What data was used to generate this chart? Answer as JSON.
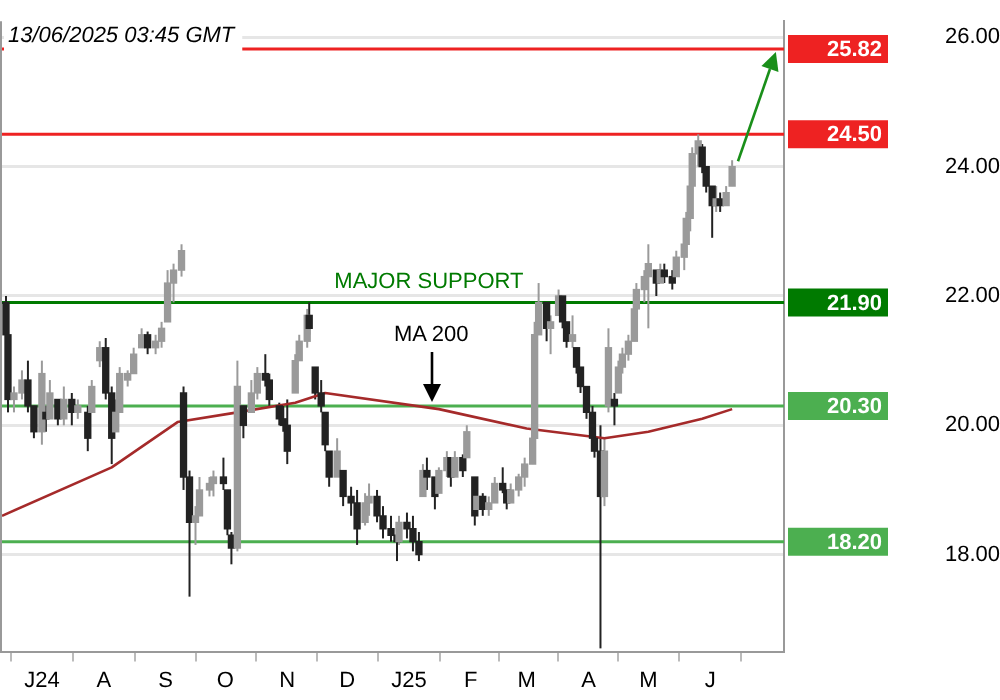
{
  "chart_data": {
    "type": "candlestick",
    "title": "13/06/2025 03:45 GMT",
    "marker": "none",
    "grid": "y",
    "x": [
      "2024-06-13",
      "2024-06-14",
      "2024-06-17",
      "2024-06-21",
      "2024-06-24",
      "2024-06-27",
      "2024-07-01",
      "2024-07-03",
      "2024-07-05",
      "2024-07-09",
      "2024-07-12",
      "2024-07-16",
      "2024-07-19",
      "2024-07-24",
      "2024-07-26",
      "2024-07-30",
      "2024-08-02",
      "2024-08-05",
      "2024-08-07",
      "2024-08-09",
      "2024-08-13",
      "2024-08-16",
      "2024-08-20",
      "2024-08-23",
      "2024-08-27",
      "2024-08-30",
      "2024-09-02",
      "2024-09-05",
      "2024-09-09",
      "2024-09-10",
      "2024-09-13",
      "2024-09-16",
      "2024-09-18",
      "2024-09-23",
      "2024-09-25",
      "2024-09-30",
      "2024-10-02",
      "2024-10-04",
      "2024-10-07",
      "2024-10-10",
      "2024-10-14",
      "2024-10-17",
      "2024-10-21",
      "2024-10-23",
      "2024-10-28",
      "2024-10-30",
      "2024-11-01",
      "2024-11-05",
      "2024-11-07",
      "2024-11-11",
      "2024-11-12",
      "2024-11-15",
      "2024-11-18",
      "2024-11-20",
      "2024-11-22",
      "2024-11-26",
      "2024-11-29",
      "2024-12-03",
      "2024-12-06",
      "2024-12-10",
      "2024-12-12",
      "2024-12-16",
      "2024-12-19",
      "2024-12-23",
      "2024-12-26",
      "2024-12-27",
      "2024-12-31",
      "2025-01-03",
      "2025-01-06",
      "2025-01-08",
      "2025-01-10",
      "2025-01-14",
      "2025-01-16",
      "2025-01-20",
      "2025-01-22",
      "2025-01-24",
      "2025-01-28",
      "2025-01-30",
      "2025-02-03",
      "2025-02-04",
      "2025-02-07",
      "2025-02-10",
      "2025-02-13",
      "2025-02-17",
      "2025-02-19",
      "2025-02-21",
      "2025-02-25",
      "2025-02-28",
      "2025-03-04",
      "2025-03-05",
      "2025-03-07",
      "2025-03-11",
      "2025-03-13",
      "2025-03-17",
      "2025-03-19",
      "2025-03-21",
      "2025-03-24",
      "2025-03-26",
      "2025-03-28",
      "2025-03-31",
      "2025-04-03",
      "2025-04-04",
      "2025-04-07",
      "2025-04-09",
      "2025-04-11",
      "2025-04-14",
      "2025-04-16",
      "2025-04-18",
      "2025-04-21",
      "2025-04-24",
      "2025-04-25",
      "2025-04-29",
      "2025-05-01",
      "2025-05-05",
      "2025-05-07",
      "2025-05-09",
      "2025-05-13",
      "2025-05-15",
      "2025-05-19",
      "2025-05-20",
      "2025-05-22",
      "2025-05-23",
      "2025-05-26",
      "2025-05-28",
      "2025-05-30",
      "2025-06-02",
      "2025-06-04",
      "2025-06-06",
      "2025-06-09",
      "2025-06-12"
    ],
    "ohlc": [
      [
        21.9,
        22.0,
        21.3,
        21.4
      ],
      [
        21.4,
        21.5,
        20.2,
        20.4
      ],
      [
        20.4,
        20.6,
        20.2,
        20.5
      ],
      [
        20.5,
        20.85,
        20.4,
        20.7
      ],
      [
        20.7,
        21.0,
        20.2,
        20.3
      ],
      [
        20.3,
        20.3,
        19.8,
        19.9
      ],
      [
        19.9,
        21.0,
        19.7,
        20.8
      ],
      [
        20.2,
        20.3,
        19.9,
        20.1
      ],
      [
        20.1,
        20.7,
        20.1,
        20.5
      ],
      [
        20.4,
        20.4,
        20.0,
        20.1
      ],
      [
        20.1,
        20.6,
        20.0,
        20.4
      ],
      [
        20.4,
        20.5,
        20.0,
        20.2
      ],
      [
        20.2,
        20.4,
        20.1,
        20.3
      ],
      [
        20.2,
        20.3,
        19.6,
        19.8
      ],
      [
        20.2,
        20.7,
        20.2,
        20.6
      ],
      [
        21.0,
        21.3,
        20.9,
        21.2
      ],
      [
        21.2,
        21.35,
        20.4,
        20.5
      ],
      [
        20.5,
        20.6,
        19.4,
        19.8
      ],
      [
        19.9,
        20.4,
        19.9,
        20.2
      ],
      [
        20.2,
        20.9,
        20.2,
        20.8
      ],
      [
        20.7,
        20.85,
        20.6,
        20.8
      ],
      [
        20.8,
        21.2,
        20.8,
        21.1
      ],
      [
        21.2,
        21.5,
        21.2,
        21.4
      ],
      [
        21.4,
        21.45,
        21.1,
        21.2
      ],
      [
        21.2,
        21.4,
        21.1,
        21.3
      ],
      [
        21.3,
        21.6,
        21.2,
        21.5
      ],
      [
        21.6,
        22.4,
        21.6,
        22.2
      ],
      [
        22.2,
        22.5,
        21.9,
        22.4
      ],
      [
        22.4,
        22.8,
        22.3,
        22.7
      ],
      [
        20.5,
        20.6,
        19.0,
        19.2
      ],
      [
        19.2,
        19.3,
        17.35,
        18.5
      ],
      [
        18.5,
        18.75,
        18.15,
        18.6
      ],
      [
        18.6,
        19.2,
        18.6,
        19.0
      ],
      [
        19.0,
        19.2,
        18.9,
        19.1
      ],
      [
        19.1,
        19.3,
        18.9,
        19.2
      ],
      [
        19.2,
        19.5,
        19.0,
        19.1
      ],
      [
        19.0,
        19.0,
        18.3,
        18.4
      ],
      [
        18.3,
        18.35,
        17.85,
        18.1
      ],
      [
        18.1,
        21.0,
        18.05,
        20.6
      ],
      [
        20.3,
        20.3,
        19.8,
        20.0
      ],
      [
        20.2,
        20.7,
        20.2,
        20.5
      ],
      [
        20.5,
        20.9,
        20.4,
        20.8
      ],
      [
        20.8,
        21.1,
        20.6,
        20.7
      ],
      [
        20.7,
        20.8,
        20.3,
        20.4
      ],
      [
        20.3,
        20.35,
        20.0,
        20.1
      ],
      [
        20.1,
        20.3,
        19.9,
        20.0
      ],
      [
        20.0,
        20.4,
        19.4,
        19.6
      ],
      [
        20.5,
        21.1,
        20.5,
        21.0
      ],
      [
        21.0,
        21.4,
        21.0,
        21.3
      ],
      [
        21.3,
        21.8,
        21.2,
        21.7
      ],
      [
        21.7,
        21.9,
        21.4,
        21.5
      ],
      [
        20.9,
        20.9,
        20.4,
        20.5
      ],
      [
        20.5,
        20.7,
        20.2,
        20.3
      ],
      [
        20.2,
        20.2,
        19.6,
        19.7
      ],
      [
        19.6,
        19.6,
        19.05,
        19.2
      ],
      [
        19.2,
        19.8,
        19.2,
        19.6
      ],
      [
        19.3,
        19.3,
        18.75,
        18.9
      ],
      [
        18.9,
        19.05,
        18.6,
        18.8
      ],
      [
        18.8,
        19.0,
        18.15,
        18.4
      ],
      [
        18.5,
        18.95,
        18.45,
        18.8
      ],
      [
        18.8,
        19.1,
        18.6,
        18.9
      ],
      [
        18.9,
        19.0,
        18.5,
        18.6
      ],
      [
        18.6,
        18.75,
        18.25,
        18.4
      ],
      [
        18.4,
        18.6,
        18.2,
        18.3
      ],
      [
        18.3,
        18.45,
        17.9,
        18.2
      ],
      [
        18.2,
        18.6,
        18.15,
        18.5
      ],
      [
        18.5,
        18.65,
        18.25,
        18.4
      ],
      [
        18.4,
        18.6,
        18.05,
        18.2
      ],
      [
        18.2,
        18.35,
        17.9,
        18.0
      ],
      [
        18.9,
        19.4,
        18.9,
        19.3
      ],
      [
        19.3,
        19.5,
        19.0,
        19.2
      ],
      [
        19.2,
        19.2,
        18.7,
        18.9
      ],
      [
        18.95,
        19.35,
        18.95,
        19.3
      ],
      [
        19.3,
        19.6,
        19.2,
        19.5
      ],
      [
        19.5,
        19.5,
        19.05,
        19.2
      ],
      [
        19.2,
        19.6,
        19.2,
        19.5
      ],
      [
        19.5,
        19.55,
        19.2,
        19.3
      ],
      [
        19.5,
        20.0,
        19.5,
        19.9
      ],
      [
        19.2,
        19.2,
        18.45,
        18.6
      ],
      [
        18.7,
        19.05,
        18.65,
        18.9
      ],
      [
        18.9,
        18.95,
        18.6,
        18.7
      ],
      [
        18.7,
        18.9,
        18.6,
        18.8
      ],
      [
        18.8,
        19.2,
        18.8,
        19.1
      ],
      [
        19.1,
        19.35,
        18.95,
        19.0
      ],
      [
        19.0,
        19.0,
        18.7,
        18.8
      ],
      [
        18.8,
        19.1,
        18.8,
        19.0
      ],
      [
        19.0,
        19.25,
        18.9,
        19.2
      ],
      [
        19.2,
        19.5,
        19.05,
        19.4
      ],
      [
        19.4,
        19.9,
        19.4,
        19.8
      ],
      [
        19.8,
        21.6,
        19.5,
        21.4
      ],
      [
        21.4,
        22.2,
        21.4,
        21.9
      ],
      [
        21.9,
        21.9,
        21.3,
        21.5
      ],
      [
        21.5,
        21.7,
        21.1,
        21.6
      ],
      [
        21.7,
        22.1,
        21.7,
        22.0
      ],
      [
        22.0,
        22.0,
        21.5,
        21.6
      ],
      [
        21.6,
        21.6,
        21.2,
        21.3
      ],
      [
        21.3,
        21.7,
        21.2,
        21.4
      ],
      [
        21.2,
        21.2,
        20.8,
        20.9
      ],
      [
        20.9,
        20.9,
        20.5,
        20.6
      ],
      [
        20.6,
        20.6,
        20.1,
        20.2
      ],
      [
        20.2,
        20.3,
        19.7,
        19.8
      ],
      [
        19.8,
        20.0,
        19.5,
        19.6
      ],
      [
        19.6,
        20.0,
        16.55,
        18.9
      ],
      [
        18.9,
        19.8,
        18.75,
        19.6
      ],
      [
        20.3,
        21.5,
        20.2,
        21.2
      ],
      [
        20.4,
        20.5,
        20.0,
        20.3
      ],
      [
        20.5,
        21.0,
        20.5,
        20.9
      ],
      [
        20.9,
        21.2,
        20.8,
        21.1
      ],
      [
        21.1,
        21.4,
        21.0,
        21.3
      ],
      [
        21.3,
        21.9,
        21.3,
        21.8
      ],
      [
        21.8,
        22.2,
        21.8,
        22.1
      ],
      [
        22.1,
        22.4,
        21.9,
        22.3
      ],
      [
        22.3,
        22.8,
        21.5,
        22.5
      ],
      [
        22.4,
        22.4,
        22.0,
        22.2
      ],
      [
        22.2,
        22.5,
        22.2,
        22.4
      ],
      [
        22.4,
        22.5,
        22.2,
        22.3
      ],
      [
        22.3,
        22.4,
        22.1,
        22.2
      ],
      [
        22.3,
        22.7,
        22.3,
        22.6
      ],
      [
        22.6,
        22.9,
        22.4,
        22.8
      ],
      [
        22.8,
        23.3,
        22.8,
        23.2
      ],
      [
        23.2,
        23.8,
        23.0,
        23.7
      ],
      [
        23.7,
        24.3,
        23.6,
        24.2
      ],
      [
        24.2,
        24.5,
        24.0,
        24.4
      ],
      [
        24.3,
        24.35,
        23.9,
        24.0
      ],
      [
        24.0,
        24.0,
        23.6,
        23.7
      ],
      [
        23.7,
        23.7,
        22.9,
        23.4
      ],
      [
        23.4,
        23.7,
        23.3,
        23.5
      ],
      [
        23.5,
        23.6,
        23.3,
        23.4
      ],
      [
        23.4,
        23.7,
        23.4,
        23.6
      ],
      [
        23.7,
        24.1,
        23.7,
        24.0
      ]
    ],
    "series": [
      {
        "type": "line",
        "color": "#a52a2a",
        "x": [
          "2024-06-11",
          "2024-08-05",
          "2024-09-07",
          "2024-10-07",
          "2024-11-05",
          "2024-11-20",
          "2025-01-16",
          "2025-03-01",
          "2025-04-09",
          "2025-05-01",
          "2025-05-28",
          "2025-06-12"
        ],
        "values": [
          18.6,
          19.35,
          20.05,
          20.2,
          20.35,
          20.5,
          20.25,
          19.95,
          19.8,
          19.9,
          20.1,
          20.25
        ]
      }
    ],
    "xlim": [
      "2024-06-10",
      "2025-07-08"
    ],
    "colors": [
      "#222222",
      "#222222",
      "#9a9a9a",
      "#9a9a9a",
      "#222222",
      "#222222",
      "#9a9a9a",
      "#222222",
      "#9a9a9a",
      "#222222",
      "#9a9a9a",
      "#222222",
      "#9a9a9a",
      "#222222",
      "#9a9a9a",
      "#9a9a9a",
      "#222222",
      "#222222",
      "#9a9a9a",
      "#9a9a9a",
      "#9a9a9a",
      "#9a9a9a",
      "#9a9a9a",
      "#222222",
      "#9a9a9a",
      "#9a9a9a",
      "#9a9a9a",
      "#9a9a9a",
      "#9a9a9a",
      "#222222",
      "#222222",
      "#9a9a9a",
      "#9a9a9a",
      "#9a9a9a",
      "#9a9a9a",
      "#222222",
      "#222222",
      "#222222",
      "#9a9a9a",
      "#222222",
      "#9a9a9a",
      "#9a9a9a",
      "#222222",
      "#222222",
      "#222222",
      "#222222",
      "#222222",
      "#9a9a9a",
      "#9a9a9a",
      "#9a9a9a",
      "#222222",
      "#222222",
      "#222222",
      "#222222",
      "#222222",
      "#9a9a9a",
      "#222222",
      "#222222",
      "#222222",
      "#9a9a9a",
      "#9a9a9a",
      "#222222",
      "#222222",
      "#222222",
      "#222222",
      "#9a9a9a",
      "#222222",
      "#222222",
      "#222222",
      "#9a9a9a",
      "#222222",
      "#222222",
      "#9a9a9a",
      "#9a9a9a",
      "#222222",
      "#9a9a9a",
      "#222222",
      "#9a9a9a",
      "#222222",
      "#9a9a9a",
      "#222222",
      "#9a9a9a",
      "#9a9a9a",
      "#222222",
      "#222222",
      "#9a9a9a",
      "#9a9a9a",
      "#9a9a9a",
      "#9a9a9a",
      "#9a9a9a",
      "#9a9a9a",
      "#222222",
      "#9a9a9a",
      "#9a9a9a",
      "#222222",
      "#222222",
      "#9a9a9a",
      "#222222",
      "#222222",
      "#222222",
      "#222222",
      "#222222",
      "#222222",
      "#9a9a9a",
      "#9a9a9a",
      "#222222",
      "#9a9a9a",
      "#9a9a9a",
      "#9a9a9a",
      "#9a9a9a",
      "#9a9a9a",
      "#9a9a9a",
      "#9a9a9a",
      "#222222",
      "#9a9a9a",
      "#222222",
      "#222222",
      "#9a9a9a",
      "#9a9a9a",
      "#9a9a9a",
      "#9a9a9a",
      "#9a9a9a",
      "#9a9a9a",
      "#222222",
      "#222222",
      "#222222",
      "#9a9a9a",
      "#222222",
      "#9a9a9a",
      "#9a9a9a"
    ],
    "xticks": [
      {
        "value": "2024-07-01",
        "label": "J24"
      },
      {
        "value": "2024-08-01",
        "label": "A"
      },
      {
        "value": "2024-09-01",
        "label": "S"
      },
      {
        "value": "2024-10-01",
        "label": "O"
      },
      {
        "value": "2024-11-01",
        "label": "N"
      },
      {
        "value": "2024-12-01",
        "label": "D"
      },
      {
        "value": "2025-01-01",
        "label": "J25"
      },
      {
        "value": "2025-02-01",
        "label": "F"
      },
      {
        "value": "2025-03-01",
        "label": "M"
      },
      {
        "value": "2025-04-01",
        "label": "A"
      },
      {
        "value": "2025-05-01",
        "label": "M"
      },
      {
        "value": "2025-06-01",
        "label": "J"
      }
    ],
    "ylim": [
      16.5,
      26.25
    ],
    "yticks": [
      {
        "value": 18,
        "label": "18.00"
      },
      {
        "value": 20,
        "label": "20.00"
      },
      {
        "value": 22,
        "label": "22.00"
      },
      {
        "value": 24,
        "label": "24.00"
      },
      {
        "value": 26,
        "label": "26.00"
      }
    ],
    "ref_lines": [
      {
        "axis": "y",
        "value": 25.82,
        "label": "25.82",
        "color": "#ee2222"
      },
      {
        "axis": "y",
        "value": 24.5,
        "label": "24.50",
        "color": "#ee2222"
      },
      {
        "axis": "y",
        "value": 21.9,
        "label": "21.90",
        "color": "#007a00"
      },
      {
        "axis": "y",
        "value": 20.3,
        "label": "20.30",
        "color": "#4caf50"
      },
      {
        "axis": "y",
        "value": 18.2,
        "label": "18.20",
        "color": "#4caf50"
      }
    ],
    "annotations": [
      {
        "text": "MAJOR SUPPORT",
        "x": "2025-01-11",
        "y": 21.9
      },
      "MA 200"
    ]
  }
}
